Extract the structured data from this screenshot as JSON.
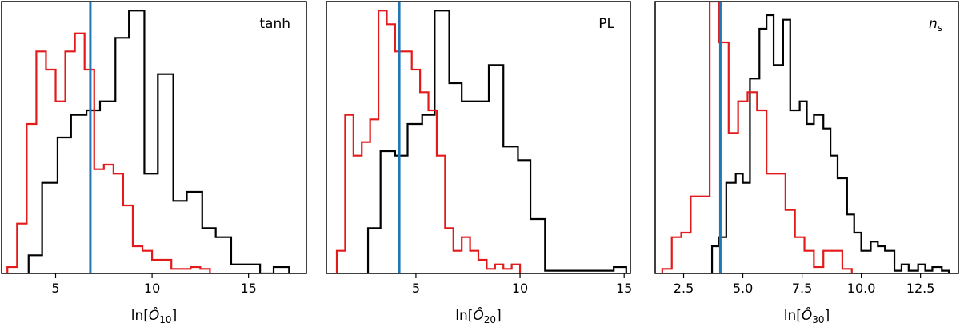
{
  "chart_data": [
    {
      "type": "histogram",
      "annotation": "tanh",
      "xlabel_base": "ln[",
      "xlabel_symbol": "Ô",
      "xlabel_sub": "10",
      "xlabel_end": "]",
      "xlim": [
        2.2,
        18.0
      ],
      "ylim": [
        0,
        30
      ],
      "xticks": [
        5,
        10,
        15
      ],
      "tick_labels": [
        "5",
        "10",
        "15"
      ],
      "vline_x": 6.8,
      "series": [
        {
          "color": "#000000",
          "edges": [
            3.6,
            4.3,
            5.1,
            5.8,
            6.6,
            7.3,
            8.1,
            8.8,
            9.6,
            10.3,
            11.1,
            11.8,
            12.6,
            13.3,
            14.1,
            14.8,
            15.6,
            16.3,
            17.1
          ],
          "counts": [
            2.0,
            10.0,
            15.0,
            17.5,
            18.0,
            19.0,
            26.0,
            29.0,
            11.0,
            22.0,
            8.0,
            9.0,
            5.0,
            4.0,
            1.0,
            1.0,
            0.0,
            0.7
          ]
        },
        {
          "color": "#e31a1c",
          "edges": [
            2.5,
            3.0,
            3.5,
            4.0,
            4.5,
            5.0,
            5.5,
            6.0,
            6.5,
            7.0,
            7.5,
            8.0,
            8.5,
            9.0,
            9.5,
            10.0,
            10.5,
            11.0,
            11.5,
            12.0,
            12.5,
            13.0
          ],
          "counts": [
            0.7,
            5.5,
            16.5,
            24.5,
            22.5,
            19.0,
            24.5,
            26.5,
            22.5,
            11.5,
            12.0,
            11.0,
            7.5,
            3.0,
            2.5,
            1.5,
            1.5,
            0.5,
            0.5,
            0.7,
            0.5
          ]
        }
      ]
    },
    {
      "type": "histogram",
      "annotation": "PL",
      "xlabel_base": "ln[",
      "xlabel_symbol": "Ô",
      "xlabel_sub": "20",
      "xlabel_end": "]",
      "xlim": [
        0.7,
        15.3
      ],
      "ylim": [
        0,
        30
      ],
      "xticks": [
        5,
        10,
        15
      ],
      "tick_labels": [
        "5",
        "10",
        "15"
      ],
      "vline_x": 4.2,
      "series": [
        {
          "color": "#000000",
          "edges": [
            2.7,
            3.3,
            4.0,
            4.6,
            5.3,
            5.9,
            6.6,
            7.2,
            7.9,
            8.5,
            9.2,
            9.9,
            10.5,
            11.2,
            11.8,
            12.5,
            13.1,
            13.8,
            14.5,
            15.1
          ],
          "counts": [
            5.0,
            13.5,
            13.0,
            16.5,
            17.5,
            29.0,
            21.0,
            19.0,
            19.0,
            23.0,
            14.0,
            12.5,
            6.0,
            0.3,
            0.3,
            0.3,
            0.3,
            0.3,
            0.7
          ]
        },
        {
          "color": "#e31a1c",
          "edges": [
            1.2,
            1.6,
            2.0,
            2.4,
            2.8,
            3.2,
            3.6,
            4.0,
            4.4,
            4.8,
            5.2,
            5.6,
            6.0,
            6.4,
            6.8,
            7.2,
            7.6,
            8.0,
            8.4,
            8.8,
            9.2,
            9.6,
            10.0
          ],
          "counts": [
            2.5,
            17.5,
            13.0,
            14.5,
            17.0,
            29.0,
            27.5,
            24.5,
            24.5,
            22.5,
            20.0,
            18.0,
            13.0,
            5.0,
            2.5,
            4.0,
            2.5,
            1.5,
            0.5,
            1.0,
            0.5,
            1.0
          ]
        }
      ]
    },
    {
      "type": "histogram",
      "annotation": "n",
      "annotation_sub": "s",
      "xlabel_base": "ln[",
      "xlabel_symbol": "Ô",
      "xlabel_sub": "30",
      "xlabel_end": "]",
      "xlim": [
        1.3,
        14.1
      ],
      "ylim": [
        0,
        30
      ],
      "xticks": [
        2.5,
        5.0,
        7.5,
        10.0,
        12.5
      ],
      "tick_labels": [
        "2.5",
        "5.0",
        "7.5",
        "10.0",
        "12.5"
      ],
      "vline_x": 4.05,
      "series": [
        {
          "color": "#000000",
          "edges": [
            3.7,
            4.0,
            4.3,
            4.7,
            5.0,
            5.3,
            5.7,
            6.0,
            6.3,
            6.7,
            7.0,
            7.4,
            7.7,
            8.0,
            8.4,
            8.7,
            9.0,
            9.4,
            9.7,
            10.0,
            10.4,
            10.7,
            11.0,
            11.4,
            11.7,
            12.0,
            12.4,
            12.7,
            13.0,
            13.4,
            13.7
          ],
          "counts": [
            3.0,
            4.0,
            10.0,
            11.0,
            10.0,
            21.5,
            27.0,
            28.5,
            23.0,
            28.0,
            18.0,
            19.0,
            16.5,
            17.5,
            16.0,
            13.0,
            10.5,
            6.5,
            4.5,
            2.5,
            3.5,
            3.0,
            2.5,
            0.3,
            1.0,
            0.3,
            1.0,
            0.3,
            0.7,
            0.3
          ]
        },
        {
          "color": "#e31a1c",
          "edges": [
            1.6,
            2.0,
            2.4,
            2.8,
            3.2,
            3.6,
            4.0,
            4.4,
            4.8,
            5.2,
            5.6,
            6.0,
            6.4,
            6.8,
            7.2,
            7.6,
            8.0,
            8.4,
            8.8,
            9.2,
            9.6
          ],
          "counts": [
            0.5,
            4.0,
            4.5,
            8.5,
            8.5,
            30.0,
            25.5,
            15.5,
            19.0,
            20.0,
            18.0,
            11.0,
            11.0,
            7.0,
            4.0,
            2.5,
            0.7,
            2.5,
            2.5,
            0.5
          ]
        }
      ]
    }
  ]
}
